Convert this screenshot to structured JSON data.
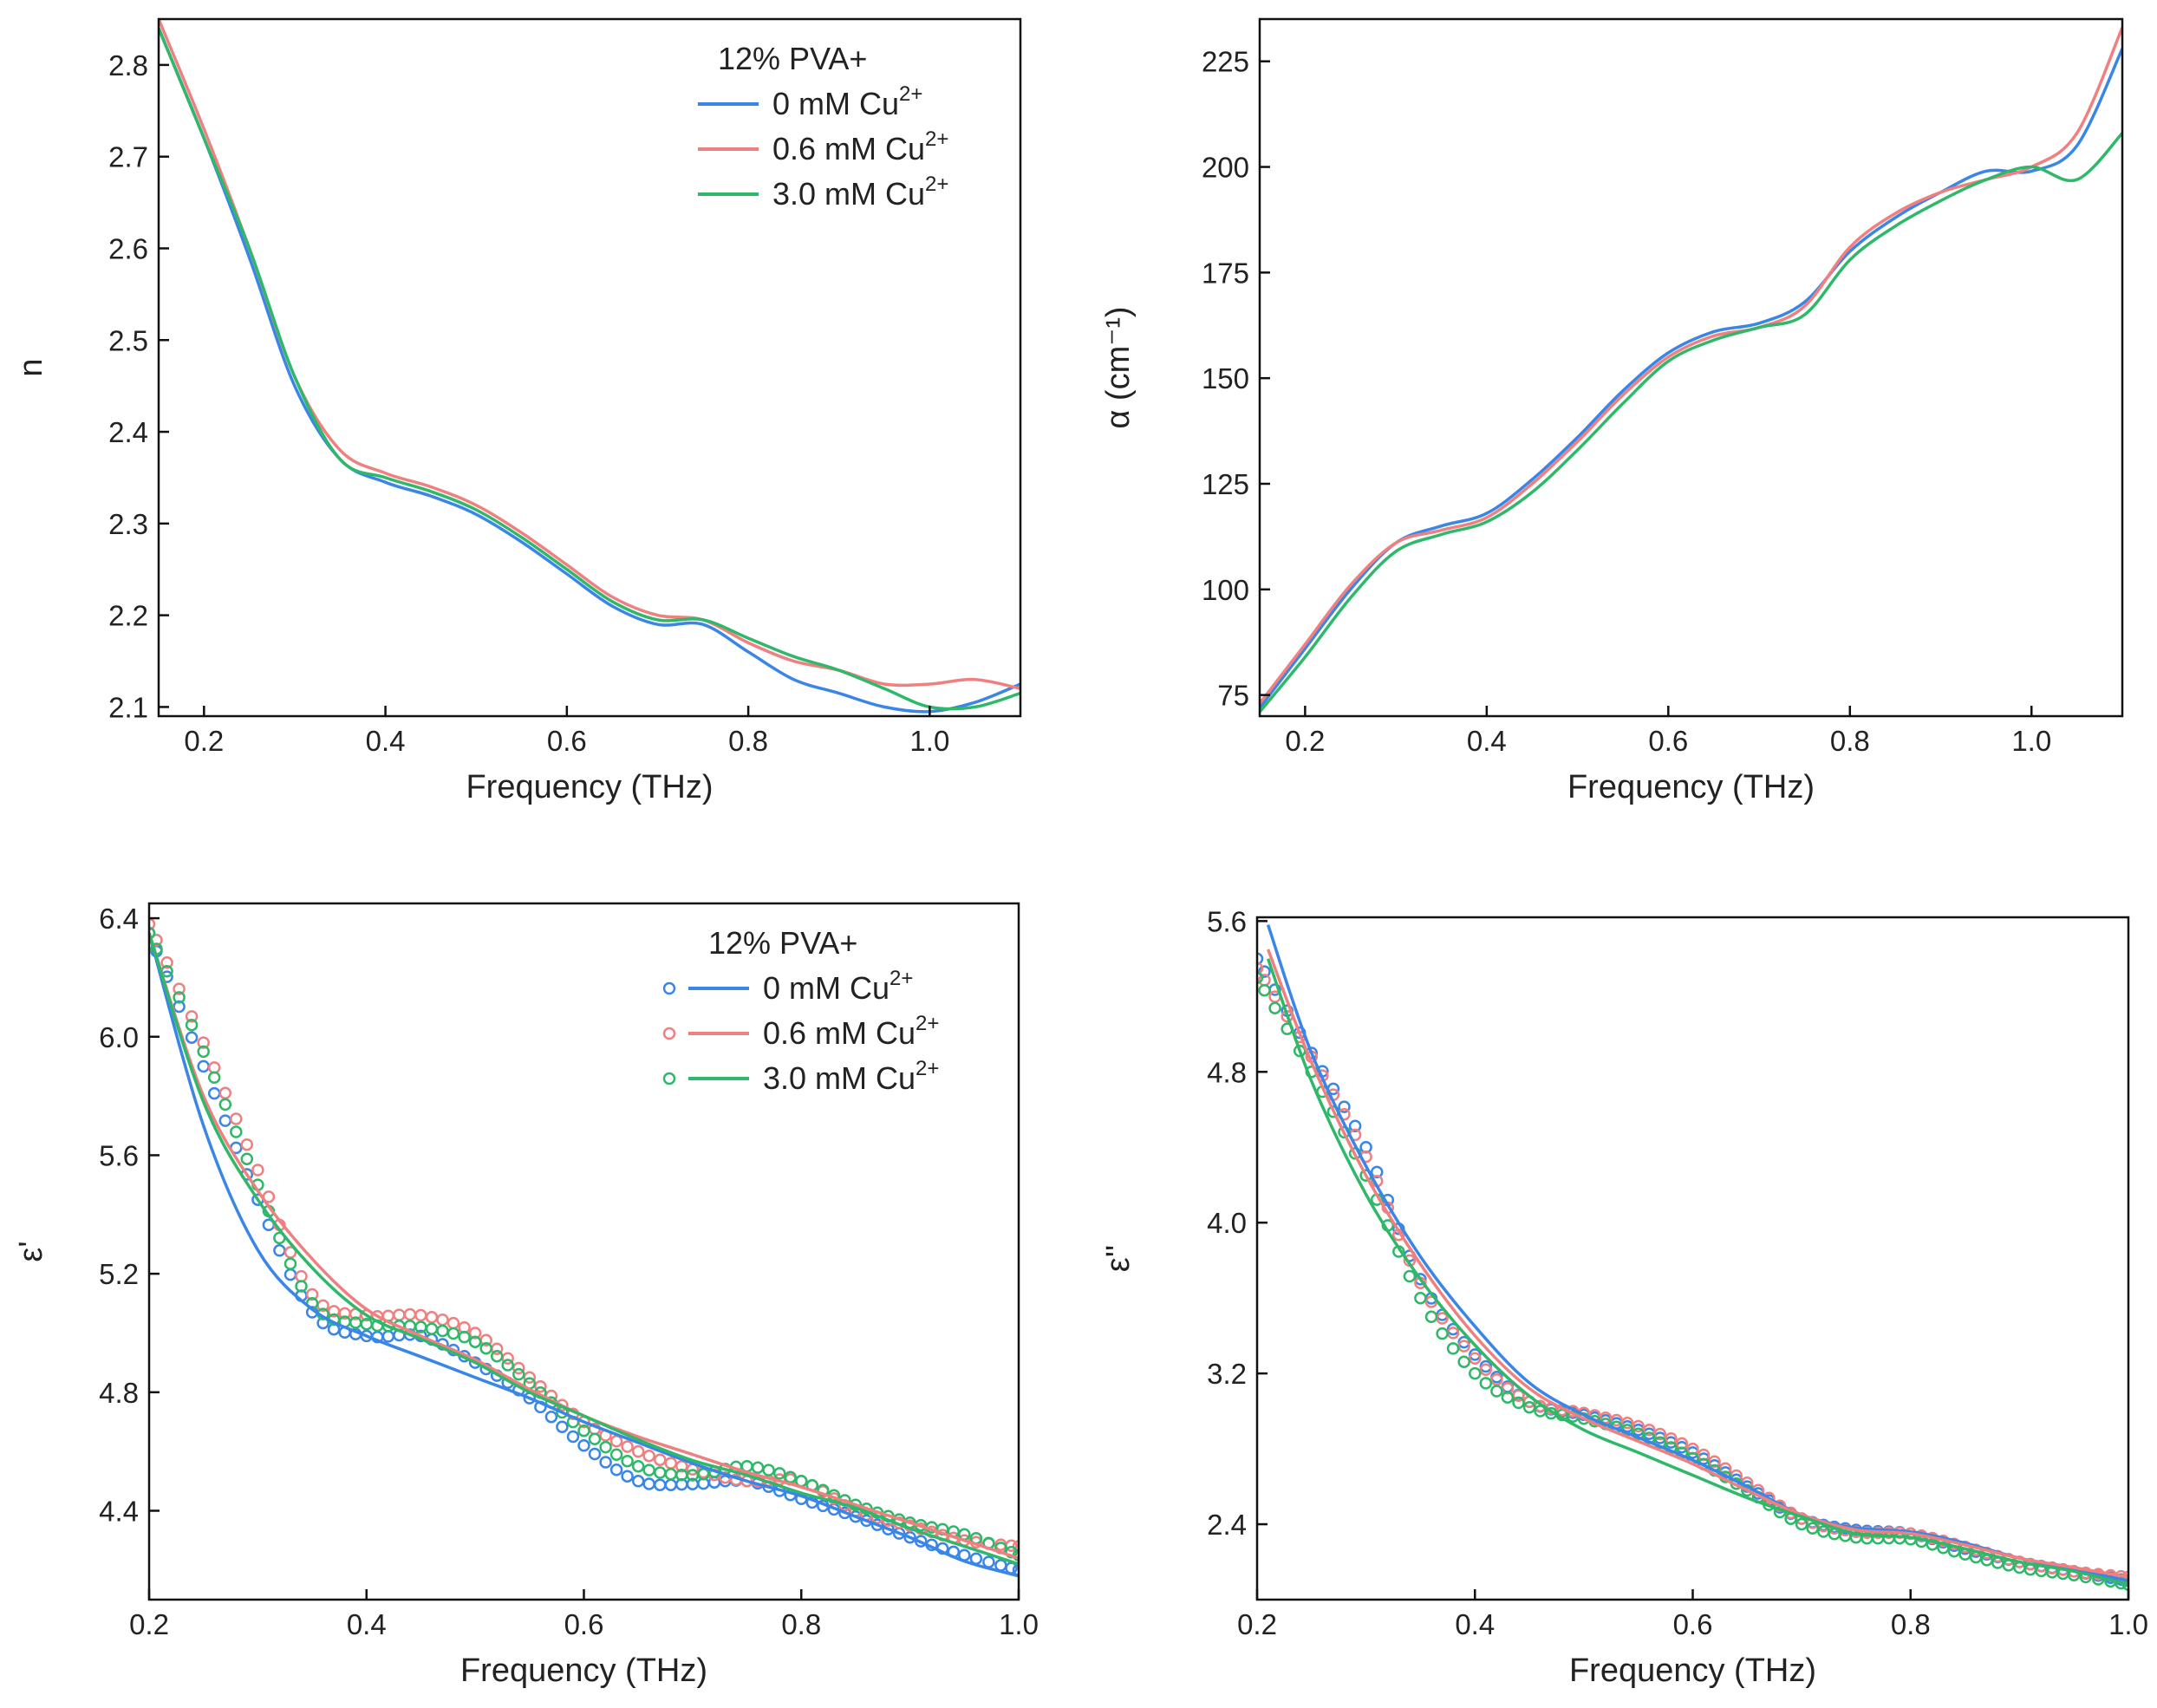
{
  "colors": {
    "blue": "#3a86e8",
    "red": "#f08080",
    "green": "#2fb86a"
  },
  "legend_title": "12% PVA+",
  "series_labels": [
    {
      "main": "0 mM Cu",
      "sup": "2+"
    },
    {
      "main": "0.6 mM Cu",
      "sup": "2+"
    },
    {
      "main": "3.0 mM Cu",
      "sup": "2+"
    }
  ],
  "chart_data": [
    {
      "type": "line",
      "id": "n",
      "xlabel": "Frequency (THz)",
      "ylabel": "n",
      "xlim": [
        0.15,
        1.1
      ],
      "ylim": [
        2.09,
        2.85
      ],
      "xticks": [
        "0.2",
        "0.4",
        "0.6",
        "0.8",
        "1.0"
      ],
      "yticks": [
        "2.1",
        "2.2",
        "2.3",
        "2.4",
        "2.5",
        "2.6",
        "2.7",
        "2.8"
      ],
      "legend": true,
      "series": [
        {
          "name": "0 mM Cu2+",
          "color": "blue",
          "style": "line",
          "x": [
            0.15,
            0.2,
            0.25,
            0.3,
            0.35,
            0.4,
            0.45,
            0.5,
            0.55,
            0.6,
            0.65,
            0.7,
            0.75,
            0.8,
            0.85,
            0.9,
            0.95,
            1.0,
            1.05,
            1.1
          ],
          "y": [
            2.84,
            2.72,
            2.59,
            2.45,
            2.37,
            2.345,
            2.33,
            2.31,
            2.28,
            2.245,
            2.21,
            2.19,
            2.19,
            2.16,
            2.13,
            2.115,
            2.1,
            2.095,
            2.105,
            2.125
          ]
        },
        {
          "name": "0.6 mM Cu2+",
          "color": "red",
          "style": "line",
          "x": [
            0.15,
            0.2,
            0.25,
            0.3,
            0.35,
            0.4,
            0.45,
            0.5,
            0.55,
            0.6,
            0.65,
            0.7,
            0.75,
            0.8,
            0.85,
            0.9,
            0.95,
            1.0,
            1.05,
            1.1
          ],
          "y": [
            2.85,
            2.73,
            2.6,
            2.46,
            2.38,
            2.355,
            2.34,
            2.32,
            2.29,
            2.255,
            2.22,
            2.2,
            2.195,
            2.17,
            2.15,
            2.14,
            2.125,
            2.125,
            2.13,
            2.12
          ]
        },
        {
          "name": "3.0 mM Cu2+",
          "color": "green",
          "style": "line",
          "x": [
            0.15,
            0.2,
            0.25,
            0.3,
            0.35,
            0.4,
            0.45,
            0.5,
            0.55,
            0.6,
            0.65,
            0.7,
            0.75,
            0.8,
            0.85,
            0.9,
            0.95,
            1.0,
            1.05,
            1.1
          ],
          "y": [
            2.84,
            2.72,
            2.6,
            2.46,
            2.37,
            2.35,
            2.335,
            2.315,
            2.285,
            2.25,
            2.215,
            2.195,
            2.195,
            2.175,
            2.155,
            2.14,
            2.12,
            2.1,
            2.1,
            2.115
          ]
        }
      ]
    },
    {
      "type": "line",
      "id": "alpha",
      "xlabel": "Frequency (THz)",
      "ylabel": "α (cm⁻¹)",
      "xlim": [
        0.15,
        1.1
      ],
      "ylim": [
        70,
        235
      ],
      "xticks": [
        "0.2",
        "0.4",
        "0.6",
        "0.8",
        "1.0"
      ],
      "yticks": [
        "75",
        "100",
        "125",
        "150",
        "175",
        "200",
        "225"
      ],
      "legend": false,
      "series": [
        {
          "name": "0 mM Cu2+",
          "color": "blue",
          "style": "line",
          "x": [
            0.15,
            0.2,
            0.25,
            0.3,
            0.35,
            0.4,
            0.45,
            0.5,
            0.55,
            0.6,
            0.65,
            0.7,
            0.75,
            0.8,
            0.85,
            0.9,
            0.95,
            1.0,
            1.05,
            1.1
          ],
          "y": [
            72,
            86,
            100,
            111,
            115,
            118,
            126,
            136,
            147,
            156,
            161,
            163,
            168,
            180,
            188,
            194,
            199,
            199,
            205,
            228
          ]
        },
        {
          "name": "0.6 mM Cu2+",
          "color": "red",
          "style": "line",
          "x": [
            0.15,
            0.2,
            0.25,
            0.3,
            0.35,
            0.4,
            0.45,
            0.5,
            0.55,
            0.6,
            0.65,
            0.7,
            0.75,
            0.8,
            0.85,
            0.9,
            0.95,
            1.0,
            1.05,
            1.1
          ],
          "y": [
            73,
            87,
            101,
            111,
            114,
            117,
            125,
            135,
            146,
            155,
            160,
            162,
            167,
            181,
            189,
            194,
            197,
            200,
            208,
            233
          ]
        },
        {
          "name": "3.0 mM Cu2+",
          "color": "green",
          "style": "line",
          "x": [
            0.15,
            0.2,
            0.25,
            0.3,
            0.35,
            0.4,
            0.45,
            0.5,
            0.55,
            0.6,
            0.65,
            0.7,
            0.75,
            0.8,
            0.85,
            0.9,
            0.95,
            1.0,
            1.05,
            1.1
          ],
          "y": [
            71,
            84,
            98,
            109,
            113,
            116,
            123,
            133,
            144,
            154,
            159,
            162,
            165,
            178,
            186,
            192,
            197,
            200,
            197,
            208
          ]
        }
      ]
    },
    {
      "type": "scatter+line",
      "id": "eps_real",
      "xlabel": "Frequency (THz)",
      "ylabel": "ε'",
      "xlim": [
        0.2,
        1.0
      ],
      "ylim": [
        4.1,
        6.45
      ],
      "xticks": [
        "0.2",
        "0.4",
        "0.6",
        "0.8",
        "1.0"
      ],
      "yticks": [
        "4.4",
        "4.8",
        "5.2",
        "5.6",
        "6.0",
        "6.4"
      ],
      "legend": true,
      "series": [
        {
          "name": "0 mM Cu2+ (data)",
          "color": "blue",
          "style": "circles",
          "x": [
            0.2,
            0.25,
            0.3,
            0.35,
            0.4,
            0.45,
            0.5,
            0.55,
            0.6,
            0.65,
            0.7,
            0.75,
            0.8,
            0.85,
            0.9,
            0.95,
            1.0
          ],
          "y": [
            6.35,
            5.9,
            5.45,
            5.07,
            4.99,
            4.99,
            4.9,
            4.78,
            4.62,
            4.5,
            4.49,
            4.5,
            4.44,
            4.38,
            4.31,
            4.25,
            4.2
          ]
        },
        {
          "name": "0.6 mM Cu2+ (data)",
          "color": "red",
          "style": "circles",
          "x": [
            0.2,
            0.25,
            0.3,
            0.35,
            0.4,
            0.45,
            0.5,
            0.55,
            0.6,
            0.65,
            0.7,
            0.75,
            0.8,
            0.85,
            0.9,
            0.95,
            1.0
          ],
          "y": [
            6.38,
            5.98,
            5.55,
            5.13,
            5.06,
            5.06,
            5.0,
            4.85,
            4.7,
            4.6,
            4.54,
            4.5,
            4.5,
            4.4,
            4.35,
            4.3,
            4.28
          ]
        },
        {
          "name": "3.0 mM Cu2+ (data)",
          "color": "green",
          "style": "circles",
          "x": [
            0.2,
            0.25,
            0.3,
            0.35,
            0.4,
            0.45,
            0.5,
            0.55,
            0.6,
            0.65,
            0.7,
            0.75,
            0.8,
            0.85,
            0.9,
            0.95,
            1.0
          ],
          "y": [
            6.35,
            5.95,
            5.5,
            5.1,
            5.03,
            5.02,
            4.97,
            4.83,
            4.67,
            4.55,
            4.52,
            4.55,
            4.5,
            4.42,
            4.36,
            4.32,
            4.25
          ]
        },
        {
          "name": "0 mM Cu2+ (fit)",
          "color": "blue",
          "style": "line",
          "x": [
            0.2,
            0.25,
            0.3,
            0.35,
            0.4,
            0.45,
            0.5,
            0.55,
            0.6,
            0.65,
            0.7,
            0.75,
            0.8,
            0.85,
            0.9,
            0.95,
            1.0
          ],
          "y": [
            6.35,
            5.7,
            5.28,
            5.08,
            4.99,
            4.92,
            4.85,
            4.78,
            4.7,
            4.63,
            4.56,
            4.5,
            4.45,
            4.38,
            4.31,
            4.23,
            4.18
          ]
        },
        {
          "name": "0.6 mM Cu2+ (fit)",
          "color": "red",
          "style": "line",
          "x": [
            0.2,
            0.25,
            0.3,
            0.35,
            0.4,
            0.45,
            0.5,
            0.55,
            0.6,
            0.65,
            0.7,
            0.75,
            0.8,
            0.85,
            0.9,
            0.95,
            1.0
          ],
          "y": [
            6.35,
            5.8,
            5.48,
            5.25,
            5.08,
            4.99,
            4.91,
            4.81,
            4.72,
            4.65,
            4.59,
            4.53,
            4.48,
            4.42,
            4.36,
            4.3,
            4.24
          ]
        },
        {
          "name": "3.0 mM Cu2+ (fit)",
          "color": "green",
          "style": "line",
          "x": [
            0.2,
            0.25,
            0.3,
            0.35,
            0.4,
            0.45,
            0.5,
            0.55,
            0.6,
            0.65,
            0.7,
            0.75,
            0.8,
            0.85,
            0.9,
            0.95,
            1.0
          ],
          "y": [
            6.35,
            5.78,
            5.45,
            5.22,
            5.06,
            4.98,
            4.9,
            4.8,
            4.72,
            4.64,
            4.57,
            4.52,
            4.46,
            4.41,
            4.34,
            4.28,
            4.22
          ]
        }
      ]
    },
    {
      "type": "scatter+line",
      "id": "eps_imag",
      "xlabel": "Frequency (THz)",
      "ylabel": "ε''",
      "xlim": [
        0.2,
        1.0
      ],
      "ylim": [
        2.0,
        5.62
      ],
      "xticks": [
        "0.2",
        "0.4",
        "0.6",
        "0.8",
        "1.0"
      ],
      "yticks": [
        "2.4",
        "3.2",
        "4.0",
        "4.8",
        "5.6"
      ],
      "legend": false,
      "series": [
        {
          "name": "0 mM Cu2+ (data)",
          "color": "blue",
          "style": "circles",
          "x": [
            0.2,
            0.25,
            0.3,
            0.35,
            0.4,
            0.45,
            0.5,
            0.55,
            0.6,
            0.65,
            0.7,
            0.75,
            0.8,
            0.85,
            0.9,
            0.95,
            1.0
          ],
          "y": [
            5.4,
            4.9,
            4.4,
            3.7,
            3.3,
            3.05,
            2.98,
            2.9,
            2.78,
            2.6,
            2.43,
            2.37,
            2.35,
            2.27,
            2.2,
            2.15,
            2.1
          ]
        },
        {
          "name": "0.6 mM Cu2+ (data)",
          "color": "red",
          "style": "circles",
          "x": [
            0.2,
            0.25,
            0.3,
            0.35,
            0.4,
            0.45,
            0.5,
            0.55,
            0.6,
            0.65,
            0.7,
            0.75,
            0.8,
            0.85,
            0.9,
            0.95,
            1.0
          ],
          "y": [
            5.35,
            4.88,
            4.35,
            3.68,
            3.28,
            3.05,
            2.99,
            2.92,
            2.8,
            2.62,
            2.43,
            2.36,
            2.35,
            2.28,
            2.2,
            2.15,
            2.12
          ]
        },
        {
          "name": "3.0 mM Cu2+ (data)",
          "color": "green",
          "style": "circles",
          "x": [
            0.2,
            0.25,
            0.3,
            0.35,
            0.4,
            0.45,
            0.5,
            0.55,
            0.6,
            0.65,
            0.7,
            0.75,
            0.8,
            0.85,
            0.9,
            0.95,
            1.0
          ],
          "y": [
            5.3,
            4.8,
            4.25,
            3.6,
            3.2,
            3.02,
            2.96,
            2.88,
            2.75,
            2.58,
            2.4,
            2.33,
            2.32,
            2.24,
            2.17,
            2.13,
            2.08
          ]
        },
        {
          "name": "0 mM Cu2+ (fit)",
          "color": "blue",
          "style": "line",
          "x": [
            0.21,
            0.25,
            0.3,
            0.35,
            0.4,
            0.45,
            0.5,
            0.55,
            0.6,
            0.65,
            0.7,
            0.75,
            0.8,
            0.85,
            0.9,
            0.95,
            1.0
          ],
          "y": [
            5.58,
            4.9,
            4.3,
            3.82,
            3.45,
            3.15,
            2.98,
            2.86,
            2.74,
            2.6,
            2.45,
            2.38,
            2.36,
            2.3,
            2.22,
            2.16,
            2.1
          ]
        },
        {
          "name": "0.6 mM Cu2+ (fit)",
          "color": "red",
          "style": "line",
          "x": [
            0.21,
            0.25,
            0.3,
            0.35,
            0.4,
            0.45,
            0.5,
            0.55,
            0.6,
            0.65,
            0.7,
            0.75,
            0.8,
            0.85,
            0.9,
            0.95,
            1.0
          ],
          "y": [
            5.45,
            4.85,
            4.25,
            3.78,
            3.4,
            3.12,
            2.96,
            2.84,
            2.72,
            2.58,
            2.45,
            2.37,
            2.35,
            2.29,
            2.22,
            2.17,
            2.12
          ]
        },
        {
          "name": "3.0 mM Cu2+ (fit)",
          "color": "green",
          "style": "line",
          "x": [
            0.21,
            0.25,
            0.3,
            0.35,
            0.4,
            0.45,
            0.5,
            0.55,
            0.6,
            0.65,
            0.7,
            0.75,
            0.8,
            0.85,
            0.9,
            0.95,
            1.0
          ],
          "y": [
            5.4,
            4.75,
            4.15,
            3.7,
            3.35,
            3.08,
            2.9,
            2.78,
            2.66,
            2.54,
            2.44,
            2.35,
            2.33,
            2.27,
            2.2,
            2.15,
            2.08
          ]
        }
      ]
    }
  ]
}
